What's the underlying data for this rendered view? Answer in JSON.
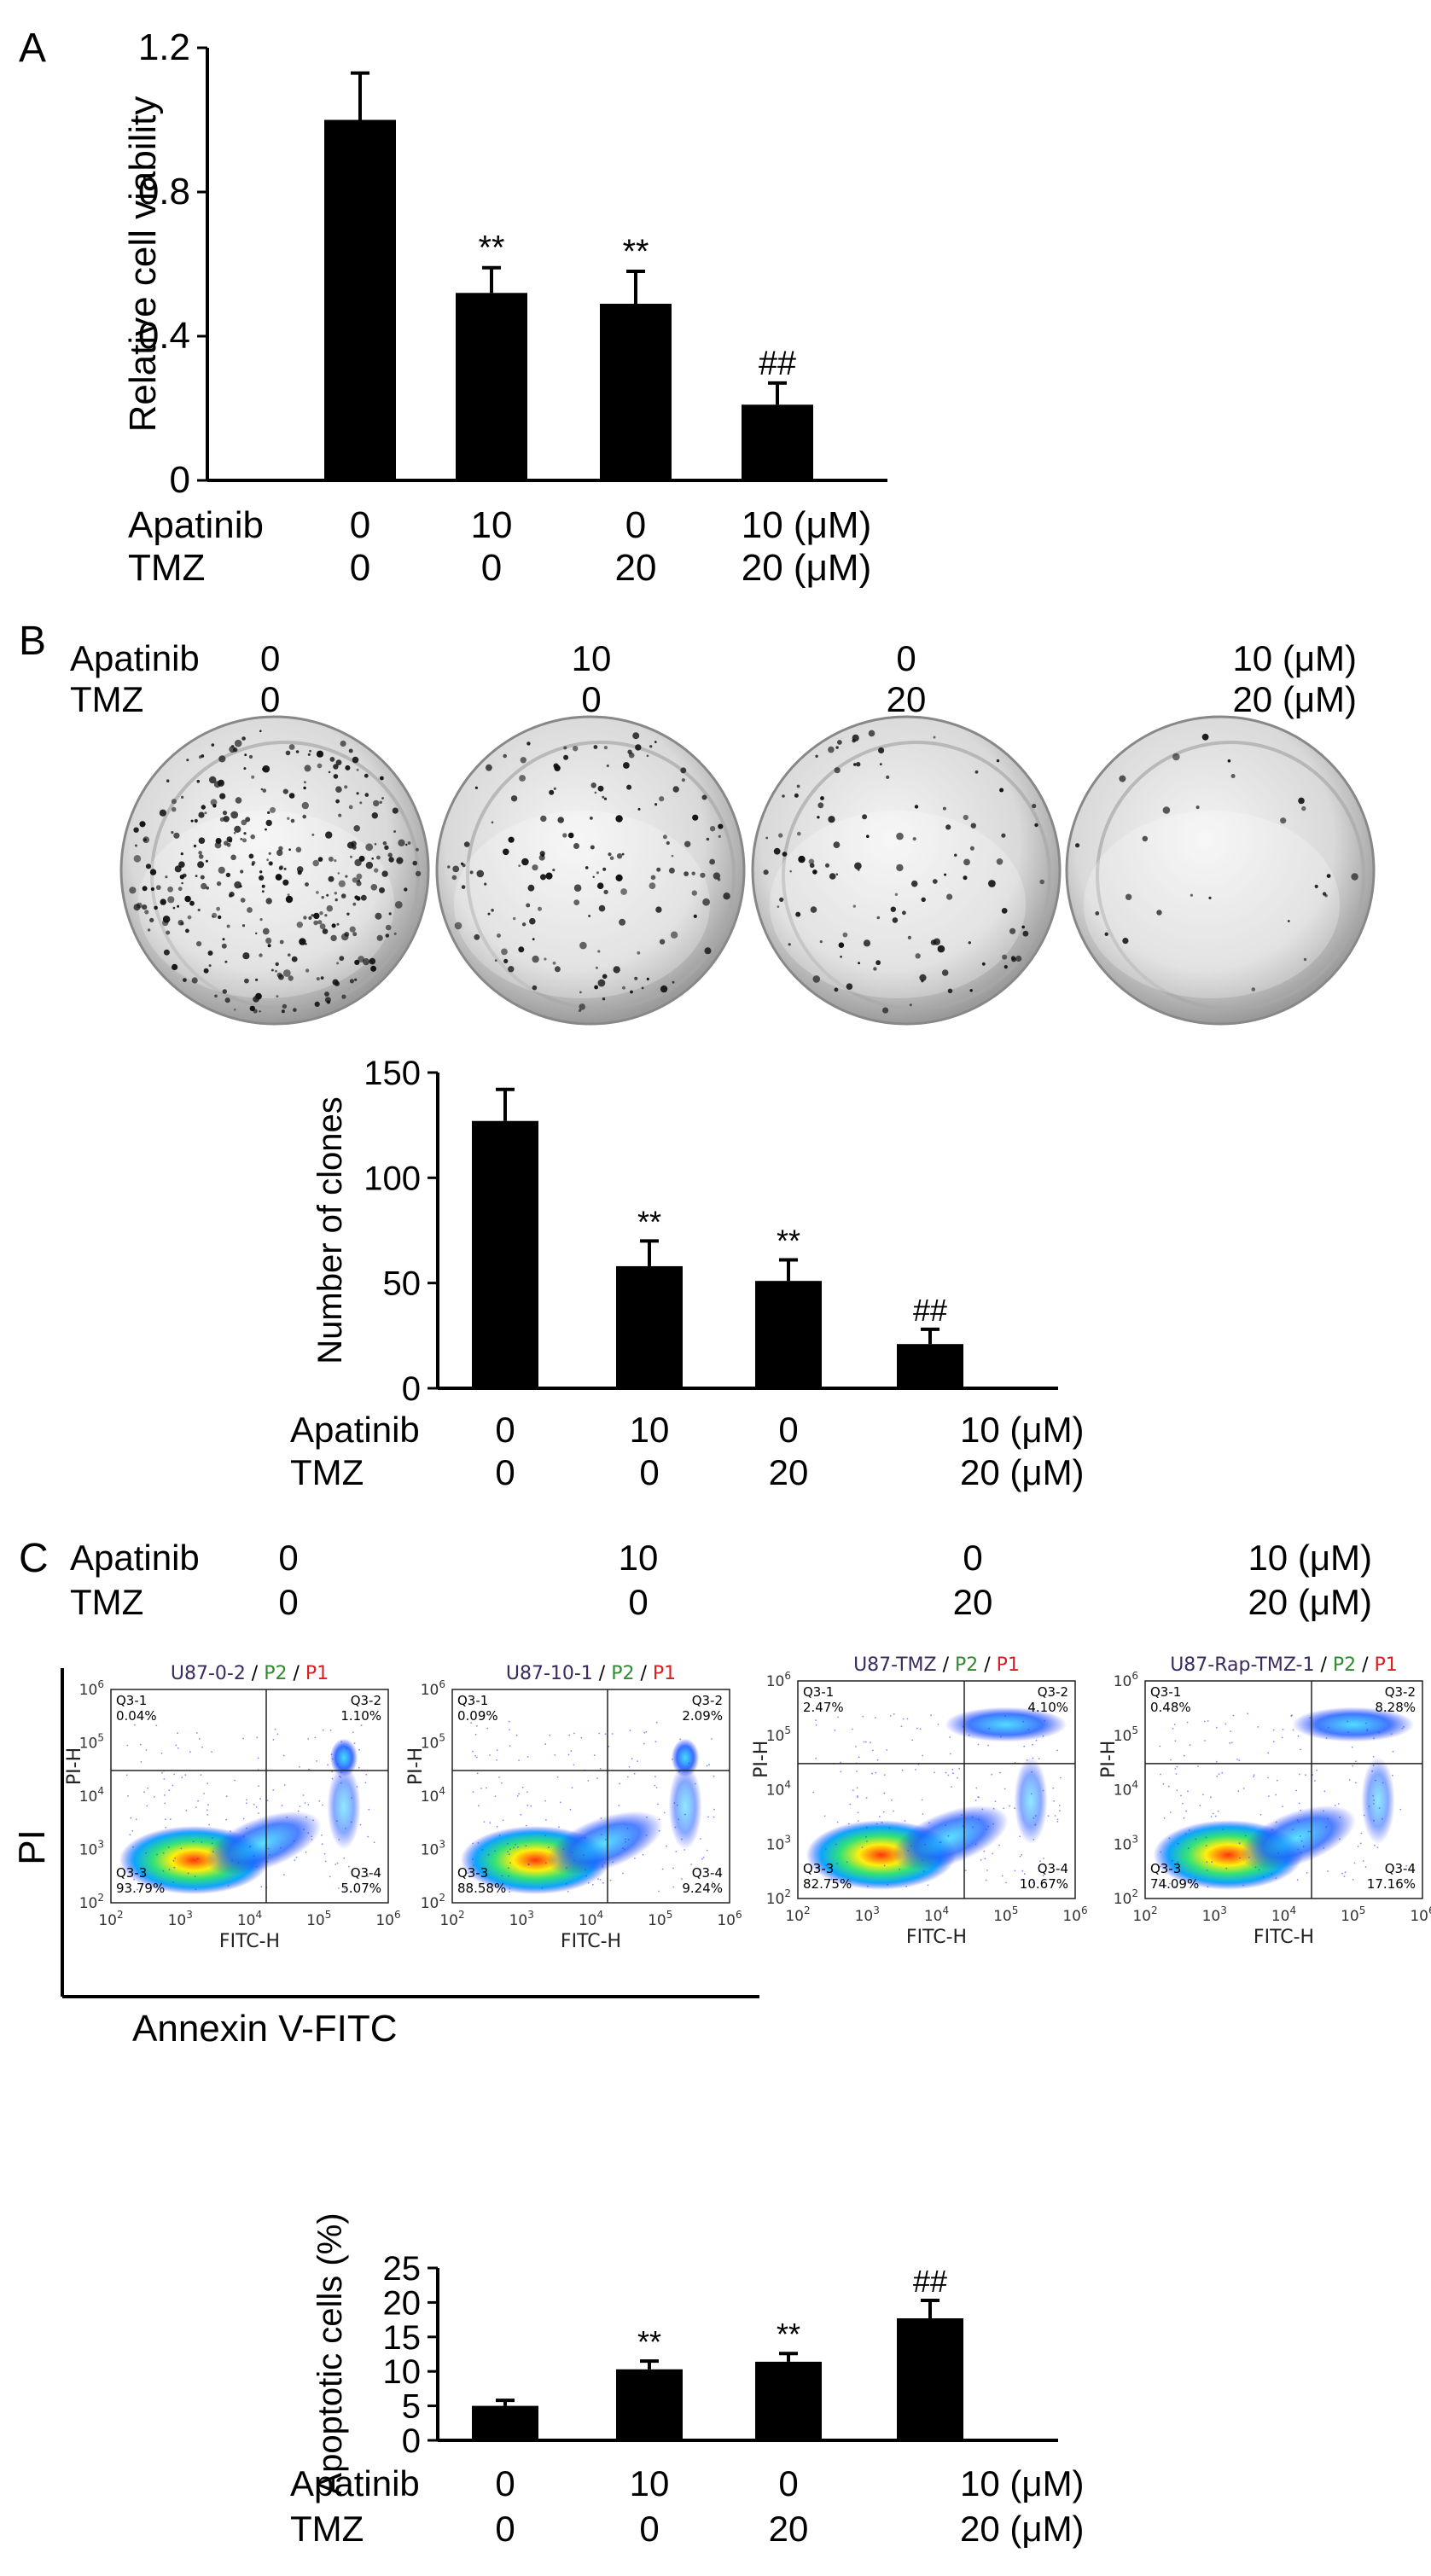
{
  "panels": {
    "A": "A",
    "B": "B",
    "C": "C"
  },
  "conditions": {
    "row1_label": "Apatinib",
    "row2_label": "TMZ",
    "row1_values": [
      "0",
      "10",
      "0",
      "10 (μM)"
    ],
    "row2_values": [
      "0",
      "0",
      "20",
      "20 (μM)"
    ]
  },
  "colonies": {
    "densities": [
      0.8,
      0.35,
      0.25,
      0.05
    ]
  },
  "flow": {
    "ylabel": "PI",
    "xlabel": "Annexin V-FITC",
    "plot_xlabel": "FITC-H",
    "plot_ylabel": "PI-H",
    "gate_p2": "P2",
    "gate_p1": "P1",
    "sep": " / ",
    "tick_base": "10",
    "tick_exponents": [
      "2",
      "3",
      "4",
      "5",
      "6"
    ],
    "colors": {
      "p2": "#2e8b2e",
      "p1": "#d42020",
      "title": "#3a2a60"
    },
    "plots": [
      {
        "title": "U87-0-2",
        "q1": [
          "Q3-1",
          "0.04%"
        ],
        "q2": [
          "Q3-2",
          "1.10%"
        ],
        "q3": [
          "Q3-3",
          "93.79%"
        ],
        "q4": [
          "Q3-4",
          "5.07%"
        ]
      },
      {
        "title": "U87-10-1",
        "q1": [
          "Q3-1",
          "0.09%"
        ],
        "q2": [
          "Q3-2",
          "2.09%"
        ],
        "q3": [
          "Q3-3",
          "88.58%"
        ],
        "q4": [
          "Q3-4",
          "9.24%"
        ]
      },
      {
        "title": "U87-TMZ",
        "q1": [
          "Q3-1",
          "2.47%"
        ],
        "q2": [
          "Q3-2",
          "4.10%"
        ],
        "q3": [
          "Q3-3",
          "82.75%"
        ],
        "q4": [
          "Q3-4",
          "10.67%"
        ]
      },
      {
        "title": "U87-Rap-TMZ-1",
        "q1": [
          "Q3-1",
          "0.48%"
        ],
        "q2": [
          "Q3-2",
          "8.28%"
        ],
        "q3": [
          "Q3-3",
          "74.09%"
        ],
        "q4": [
          "Q3-4",
          "17.16%"
        ]
      }
    ]
  },
  "chart_data": [
    {
      "type": "bar",
      "ylabel": "Relative cell viability",
      "ylim": [
        0,
        1.2
      ],
      "yticks": [
        "0",
        "0.4",
        "0.8",
        "1.2"
      ],
      "ytick_values": [
        0,
        0.4,
        0.8,
        1.2
      ],
      "values": [
        1.0,
        0.52,
        0.49,
        0.21
      ],
      "errors": [
        0.13,
        0.07,
        0.09,
        0.06
      ],
      "annotations": [
        "",
        "**",
        "**",
        "##"
      ]
    },
    {
      "type": "bar",
      "ylabel": "Number of clones",
      "ylim": [
        0,
        150
      ],
      "yticks": [
        "0",
        "50",
        "100",
        "150"
      ],
      "ytick_values": [
        0,
        50,
        100,
        150
      ],
      "values": [
        127,
        58,
        51,
        21
      ],
      "errors": [
        15,
        12,
        10,
        7
      ],
      "annotations": [
        "",
        "**",
        "**",
        "##"
      ]
    },
    {
      "type": "bar",
      "ylabel": "Apoptotic cells (%)",
      "ylim": [
        0,
        25
      ],
      "yticks": [
        "0",
        "5",
        "10",
        "15",
        "20",
        "25"
      ],
      "ytick_values": [
        0,
        5,
        10,
        15,
        20,
        25
      ],
      "values": [
        5.0,
        10.3,
        11.4,
        17.7
      ],
      "errors": [
        0.8,
        1.2,
        1.2,
        2.6
      ],
      "annotations": [
        "",
        "**",
        "**",
        "##"
      ]
    }
  ]
}
